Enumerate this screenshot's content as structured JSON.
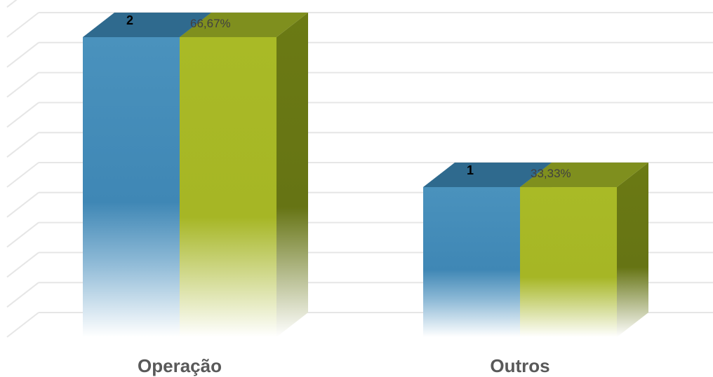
{
  "chart_data": {
    "type": "bar",
    "style": "3d-clustered-column",
    "categories": [
      "Operação",
      "Outros"
    ],
    "series": [
      {
        "values": [
          2,
          1
        ],
        "labels": [
          "2",
          "1"
        ],
        "color": "#4A90B8"
      },
      {
        "values": [
          0.6667,
          0.3333
        ],
        "labels": [
          "66,67%",
          "33,33%"
        ],
        "color": "#A8B825"
      }
    ],
    "title": "",
    "xlabel": "",
    "ylabel": "",
    "ylim": [
      0,
      2.2
    ],
    "grid": true,
    "legend": "none"
  },
  "colors": {
    "grid": "#E6E6E6",
    "category_text": "#595959"
  }
}
